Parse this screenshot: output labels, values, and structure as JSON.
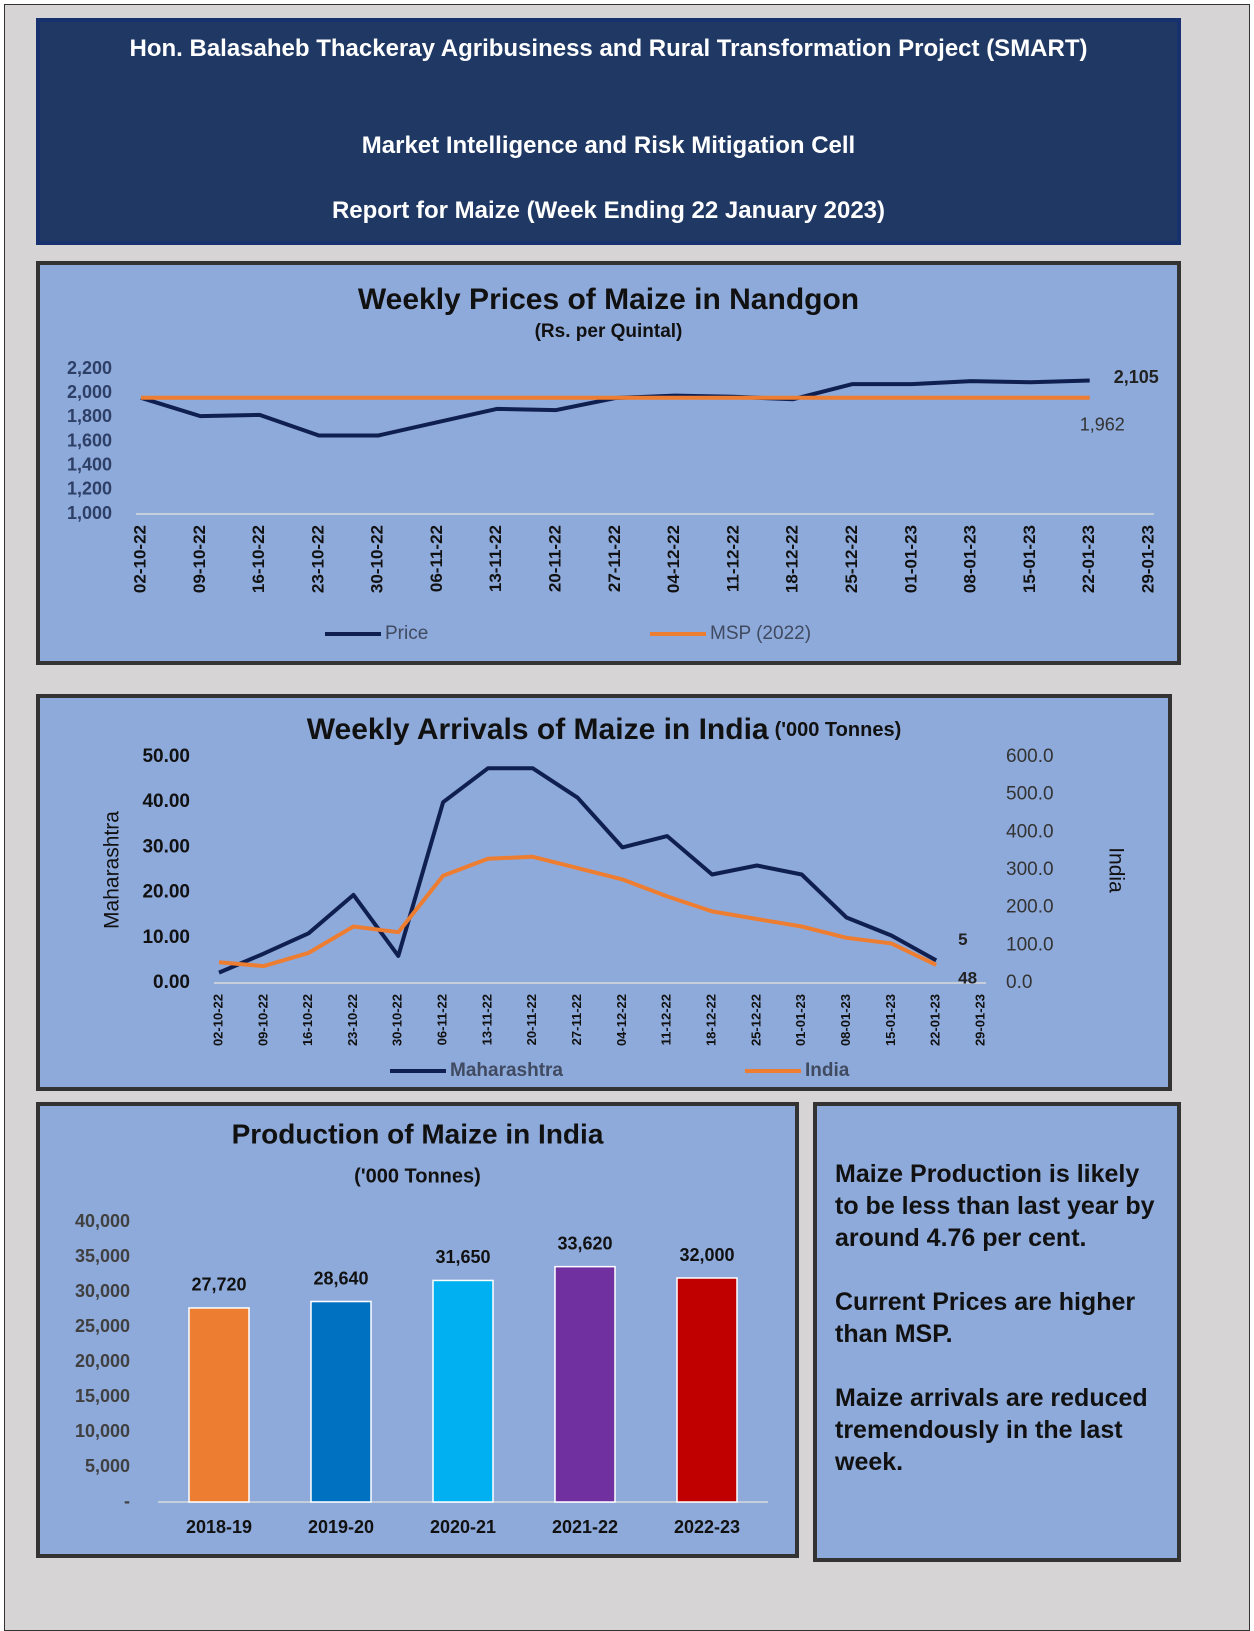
{
  "header": {
    "title": "Hon. Balasaheb Thackeray Agribusiness and Rural Transformation Project (SMART)",
    "cell": "Market Intelligence and Risk Mitigation Cell",
    "report": "Report for Maize (Week Ending 22 January 2023)"
  },
  "chart_data": [
    {
      "type": "line",
      "title": "Weekly Prices of Maize in Nandgon",
      "subtitle": "(Rs. per Quintal)",
      "categories": [
        "02-10-22",
        "09-10-22",
        "16-10-22",
        "23-10-22",
        "30-10-22",
        "06-11-22",
        "13-11-22",
        "20-11-22",
        "27-11-22",
        "04-12-22",
        "11-12-22",
        "18-12-22",
        "25-12-22",
        "01-01-23",
        "08-01-23",
        "15-01-23",
        "22-01-23",
        "29-01-23"
      ],
      "series": [
        {
          "name": "Price",
          "color": "#0f1f50",
          "values": [
            1962,
            1810,
            1820,
            1650,
            1650,
            1760,
            1870,
            1860,
            1960,
            1980,
            1970,
            1950,
            2075,
            2075,
            2100,
            2090,
            2105,
            null
          ],
          "value_labels": [
            null,
            null,
            null,
            null,
            null,
            null,
            null,
            null,
            null,
            null,
            null,
            null,
            null,
            null,
            null,
            null,
            "2,105",
            null
          ]
        },
        {
          "name": "MSP (2022)",
          "color": "#ed7d31",
          "values": [
            1962,
            1962,
            1962,
            1962,
            1962,
            1962,
            1962,
            1962,
            1962,
            1962,
            1962,
            1962,
            1962,
            1962,
            1962,
            1962,
            1962,
            null
          ],
          "value_labels": [
            null,
            null,
            null,
            null,
            null,
            null,
            null,
            null,
            null,
            null,
            null,
            null,
            null,
            null,
            null,
            null,
            "1,962",
            null
          ]
        }
      ],
      "ylim": [
        1000,
        2200
      ],
      "yticks": [
        {
          "value": 1000,
          "label": "1,000"
        },
        {
          "value": 1200,
          "label": "1,200"
        },
        {
          "value": 1400,
          "label": "1,400"
        },
        {
          "value": 1600,
          "label": "1,600"
        },
        {
          "value": 1800,
          "label": "1,800"
        },
        {
          "value": 2000,
          "label": "2,000"
        },
        {
          "value": 2200,
          "label": "2,200"
        }
      ],
      "grid": false,
      "legend": "bottom"
    },
    {
      "type": "line",
      "title": "Weekly Arrivals of Maize  in  India",
      "title_unit": "('000 Tonnes)",
      "ylabel": "Maharashtra",
      "y2label": "India",
      "categories": [
        "02-10-22",
        "09-10-22",
        "16-10-22",
        "23-10-22",
        "30-10-22",
        "06-11-22",
        "13-11-22",
        "20-11-22",
        "27-11-22",
        "04-12-22",
        "11-12-22",
        "18-12-22",
        "25-12-22",
        "01-01-23",
        "08-01-23",
        "15-01-23",
        "22-01-23",
        "29-01-23"
      ],
      "series": [
        {
          "name": "Maharashtra",
          "color": "#0f1f50",
          "values": [
            2.3,
            6.5,
            11,
            19.5,
            6,
            40,
            47.5,
            47.5,
            41,
            30,
            32.5,
            24,
            26,
            24,
            14.5,
            10.5,
            5,
            null
          ],
          "value_labels": [
            null,
            null,
            null,
            null,
            null,
            null,
            null,
            null,
            null,
            null,
            null,
            null,
            null,
            null,
            null,
            null,
            "5",
            null
          ]
        },
        {
          "name": "India",
          "color": "#ed7d31",
          "axis": "y2",
          "values": [
            55,
            45,
            80,
            150,
            135,
            285,
            330,
            335,
            305,
            275,
            230,
            190,
            170,
            150,
            120,
            105,
            48,
            null
          ],
          "value_labels": [
            null,
            null,
            null,
            null,
            null,
            null,
            null,
            null,
            null,
            null,
            null,
            null,
            null,
            null,
            null,
            null,
            "48",
            null
          ]
        }
      ],
      "ylim": [
        0,
        50
      ],
      "yticks": [
        {
          "value": 0,
          "label": "0.00"
        },
        {
          "value": 10,
          "label": "10.00"
        },
        {
          "value": 20,
          "label": "20.00"
        },
        {
          "value": 30,
          "label": "30.00"
        },
        {
          "value": 40,
          "label": "40.00"
        },
        {
          "value": 50,
          "label": "50.00"
        }
      ],
      "y2lim": [
        0,
        600
      ],
      "y2ticks": [
        {
          "value": 0,
          "label": "0.0"
        },
        {
          "value": 100,
          "label": "100.0"
        },
        {
          "value": 200,
          "label": "200.0"
        },
        {
          "value": 300,
          "label": "300.0"
        },
        {
          "value": 400,
          "label": "400.0"
        },
        {
          "value": 500,
          "label": "500.0"
        },
        {
          "value": 600,
          "label": "600.0"
        }
      ],
      "grid": false,
      "legend": "bottom"
    },
    {
      "type": "bar",
      "title": "Production of Maize in India",
      "subtitle": "('000 Tonnes)",
      "categories": [
        "2018-19",
        "2019-20",
        "2020-21",
        "2021-22",
        "2022-23"
      ],
      "values": [
        27720,
        28640,
        31650,
        33620,
        32000
      ],
      "value_labels": [
        "27,720",
        "28,640",
        "31,650",
        "33,620",
        "32,000"
      ],
      "colors": [
        "#ed7d31",
        "#0070c0",
        "#00b0f0",
        "#7030a0",
        "#c00000"
      ],
      "ylim": [
        0,
        40000
      ],
      "yticks": [
        {
          "value": 0,
          "label": "-"
        },
        {
          "value": 5000,
          "label": "5,000"
        },
        {
          "value": 10000,
          "label": "10,000"
        },
        {
          "value": 15000,
          "label": "15,000"
        },
        {
          "value": 20000,
          "label": "20,000"
        },
        {
          "value": 25000,
          "label": "25,000"
        },
        {
          "value": 30000,
          "label": "30,000"
        },
        {
          "value": 35000,
          "label": "35,000"
        },
        {
          "value": 40000,
          "label": "40,000"
        }
      ],
      "grid": false
    }
  ],
  "note": {
    "paragraphs": [
      "Maize Production is likely to be less than last year by around 4.76 per cent.",
      "Current Prices are higher than MSP.",
      "Maize arrivals are reduced tremendously in the last week."
    ]
  }
}
